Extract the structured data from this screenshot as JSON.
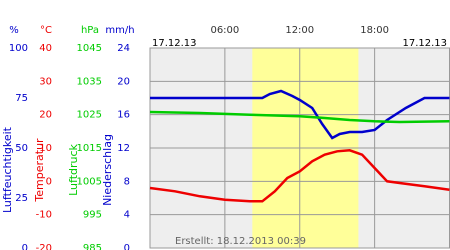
{
  "chart_data": {
    "type": "line",
    "xlim": [
      0,
      24
    ],
    "xticks": [
      {
        "value": 6,
        "label": "06:00"
      },
      {
        "value": 12,
        "label": "12:00"
      },
      {
        "value": 18,
        "label": "18:00"
      }
    ],
    "daylight": [
      8.2,
      16.7
    ],
    "date_left": "17.12.13",
    "date_right": "17.12.13",
    "created": "Erstellt: 18.12.2013 00:39",
    "grid": true,
    "yaxes": [
      {
        "title": "Luftfeuchtigkeit",
        "unit": "%",
        "color": "#0000cc",
        "lim": [
          0,
          100
        ],
        "ticks": [
          100,
          75,
          50,
          25,
          0
        ]
      },
      {
        "title": "Temperatur",
        "unit": "°C",
        "color": "#ee0000",
        "lim": [
          -20,
          40
        ],
        "ticks": [
          40,
          30,
          20,
          10,
          0,
          -10,
          -20
        ]
      },
      {
        "title": "Luftdruck",
        "unit": "hPa",
        "color": "#00cc00",
        "lim": [
          985,
          1045
        ],
        "ticks": [
          1045,
          1035,
          1025,
          1015,
          1005,
          995,
          985
        ]
      },
      {
        "title": "Niederschlag",
        "unit": "mm/h",
        "color": "#0000cc",
        "lim": [
          0,
          24
        ],
        "ticks": [
          24,
          20,
          16,
          12,
          8,
          4,
          0
        ]
      }
    ],
    "series": [
      {
        "axis": 0,
        "color": "#0000cc",
        "x": [
          0,
          9,
          9.6,
          10.5,
          11.4,
          12,
          13,
          13.8,
          14.6,
          15.2,
          16,
          17,
          18,
          19,
          20.5,
          22,
          24
        ],
        "values": [
          75,
          75,
          77,
          78.5,
          76,
          74,
          70,
          62,
          55,
          57,
          58,
          58,
          59,
          64,
          70,
          75,
          75
        ]
      },
      {
        "axis": 1,
        "color": "#ee0000",
        "x": [
          0,
          2,
          4,
          6,
          8,
          9,
          10,
          11,
          12,
          13,
          14,
          15,
          16,
          17,
          18,
          19,
          20,
          22,
          24
        ],
        "values": [
          -2,
          -3,
          -4.5,
          -5.5,
          -6,
          -6,
          -3,
          1,
          3,
          6,
          8,
          9,
          9.3,
          8,
          4,
          0,
          -0.5,
          -1.5,
          -2.5
        ]
      },
      {
        "axis": 2,
        "color": "#00cc00",
        "x": [
          0,
          4,
          8,
          12,
          14,
          16,
          18,
          20,
          24
        ],
        "values": [
          1025.8,
          1025.5,
          1025,
          1024.5,
          1024,
          1023.4,
          1023,
          1022.8,
          1023
        ]
      }
    ]
  }
}
